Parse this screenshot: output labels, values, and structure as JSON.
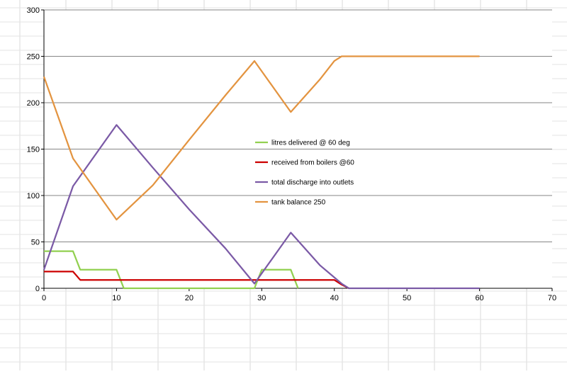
{
  "chart_data": {
    "type": "line",
    "title": "",
    "xlabel": "",
    "ylabel": "",
    "xlim": [
      0,
      70
    ],
    "ylim": [
      0,
      300
    ],
    "x_ticks": [
      "0",
      "10",
      "20",
      "30",
      "40",
      "50",
      "60",
      "70"
    ],
    "y_ticks": [
      "0",
      "50",
      "100",
      "150",
      "200",
      "250",
      "300"
    ],
    "grid": "horizontal",
    "legend_position": "center",
    "series": [
      {
        "name": "litres delivered @ 60 deg",
        "color": "#92D050",
        "points": [
          [
            0,
            40
          ],
          [
            4,
            40
          ],
          [
            5,
            20
          ],
          [
            10,
            20
          ],
          [
            11,
            0
          ],
          [
            29,
            0
          ],
          [
            30,
            20
          ],
          [
            34,
            20
          ],
          [
            35,
            0
          ]
        ]
      },
      {
        "name": "received from boilers @60",
        "color": "#CC0000",
        "points": [
          [
            0,
            18
          ],
          [
            4,
            18
          ],
          [
            5,
            9
          ],
          [
            40,
            9
          ],
          [
            41,
            4
          ],
          [
            42,
            0
          ]
        ]
      },
      {
        "name": "total discharge into outlets",
        "color": "#7B5AA6",
        "points": [
          [
            0,
            20
          ],
          [
            4,
            110
          ],
          [
            10,
            176
          ],
          [
            15,
            130
          ],
          [
            20,
            85
          ],
          [
            25,
            43
          ],
          [
            29,
            5
          ],
          [
            34,
            60
          ],
          [
            38,
            25
          ],
          [
            41,
            5
          ],
          [
            42,
            0
          ],
          [
            60,
            0
          ]
        ]
      },
      {
        "name": "tank balance 250",
        "color": "#E39440",
        "points": [
          [
            0,
            228
          ],
          [
            4,
            140
          ],
          [
            10,
            74
          ],
          [
            15,
            111
          ],
          [
            20,
            160
          ],
          [
            25,
            208
          ],
          [
            29,
            245
          ],
          [
            34,
            190
          ],
          [
            38,
            225
          ],
          [
            40,
            245
          ],
          [
            41,
            250
          ],
          [
            60,
            250
          ]
        ]
      }
    ]
  }
}
